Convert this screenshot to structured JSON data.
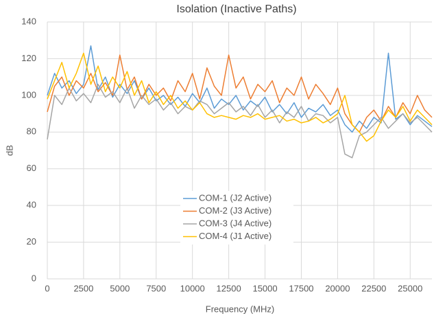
{
  "chart_data": {
    "type": "line",
    "title": "Isolation (Inactive Paths)",
    "x_label": "Frequency (MHz)",
    "y_label": "dB",
    "x": [
      0,
      500,
      1000,
      1500,
      2000,
      2500,
      3000,
      3500,
      4000,
      4500,
      5000,
      5500,
      6000,
      6500,
      7000,
      7500,
      8000,
      8500,
      9000,
      9500,
      10000,
      10500,
      11000,
      11500,
      12000,
      12500,
      13000,
      13500,
      14000,
      14500,
      15000,
      15500,
      16000,
      16500,
      17000,
      17500,
      18000,
      18500,
      19000,
      19500,
      20000,
      20500,
      21000,
      21500,
      22000,
      22500,
      23000,
      23500,
      24000,
      24500,
      25000,
      25500,
      26000,
      26500
    ],
    "series": [
      {
        "name": "COM-1 (J2 Active)",
        "color": "#5b9bd5",
        "values": [
          100,
          112,
          104,
          108,
          101,
          106,
          127,
          103,
          110,
          99,
          106,
          101,
          108,
          98,
          104,
          97,
          100,
          95,
          99,
          94,
          101,
          96,
          104,
          93,
          98,
          95,
          100,
          92,
          97,
          94,
          99,
          91,
          95,
          90,
          96,
          88,
          93,
          91,
          95,
          89,
          92,
          84,
          80,
          86,
          82,
          88,
          85,
          123,
          87,
          90,
          84,
          89,
          86,
          83
        ]
      },
      {
        "name": "COM-2 (J3 Active)",
        "color": "#ed7d31",
        "values": [
          91,
          105,
          110,
          100,
          108,
          104,
          112,
          102,
          107,
          100,
          122,
          103,
          110,
          98,
          106,
          100,
          104,
          97,
          108,
          102,
          112,
          98,
          115,
          105,
          100,
          122,
          104,
          110,
          98,
          106,
          102,
          108,
          96,
          104,
          100,
          110,
          98,
          106,
          101,
          95,
          104,
          90,
          84,
          80,
          88,
          92,
          86,
          94,
          88,
          96,
          90,
          100,
          92,
          88
        ]
      },
      {
        "name": "COM-3 (J4 Active)",
        "color": "#a5a5a5",
        "values": [
          76,
          100,
          95,
          104,
          97,
          101,
          96,
          106,
          99,
          102,
          96,
          104,
          93,
          100,
          95,
          98,
          92,
          96,
          90,
          94,
          92,
          97,
          95,
          90,
          93,
          96,
          91,
          94,
          89,
          95,
          88,
          92,
          85,
          91,
          88,
          94,
          86,
          90,
          89,
          85,
          88,
          68,
          66,
          78,
          80,
          84,
          88,
          82,
          86,
          90,
          85,
          88,
          84,
          80
        ]
      },
      {
        "name": "COM-4 (J1 Active)",
        "color": "#ffc000",
        "values": [
          98,
          108,
          118,
          104,
          112,
          123,
          106,
          116,
          102,
          110,
          104,
          113,
          100,
          108,
          96,
          102,
          95,
          100,
          93,
          97,
          92,
          96,
          90,
          88,
          89,
          88,
          87,
          89,
          88,
          90,
          87,
          88,
          89,
          86,
          87,
          85,
          86,
          88,
          85,
          87,
          90,
          100,
          84,
          80,
          75,
          78,
          86,
          92,
          88,
          94,
          86,
          92,
          88,
          84
        ]
      }
    ],
    "xlim": [
      0,
      26500
    ],
    "xticks": [
      0,
      2500,
      5000,
      7500,
      10000,
      12500,
      15000,
      17500,
      20000,
      22500,
      25000
    ],
    "ylim": [
      0,
      140
    ],
    "yticks": [
      0,
      20,
      40,
      60,
      80,
      100,
      120,
      140
    ],
    "grid": true,
    "legend": "center"
  }
}
